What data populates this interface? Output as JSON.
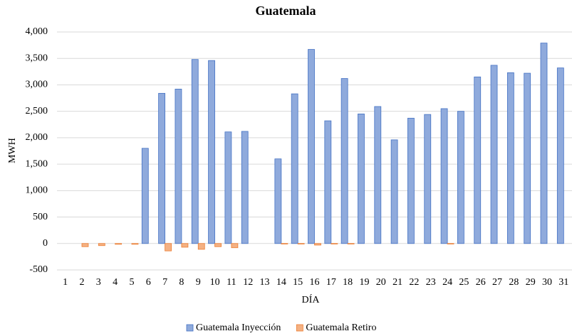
{
  "chart_data": {
    "type": "bar",
    "title": "Guatemala",
    "x_label": "DÍA",
    "y_label": "MWH",
    "categories": [
      "1",
      "2",
      "3",
      "4",
      "5",
      "6",
      "7",
      "8",
      "9",
      "10",
      "11",
      "12",
      "13",
      "14",
      "15",
      "16",
      "17",
      "18",
      "19",
      "20",
      "21",
      "22",
      "23",
      "24",
      "25",
      "26",
      "27",
      "28",
      "29",
      "30",
      "31"
    ],
    "series": [
      {
        "name": "Guatemala Inyección",
        "color": "#8faadc",
        "values": [
          0,
          0,
          0,
          0,
          0,
          1800,
          2840,
          2920,
          3480,
          3460,
          2110,
          2120,
          0,
          1600,
          2830,
          3670,
          2320,
          3120,
          2450,
          2590,
          1960,
          2370,
          2440,
          2550,
          2500,
          3150,
          3370,
          3230,
          3220,
          3790,
          3320
        ]
      },
      {
        "name": "Guatemala Retiro",
        "color": "#f4b183",
        "values": [
          0,
          -60,
          -40,
          -15,
          -15,
          0,
          -140,
          -70,
          -110,
          -60,
          -80,
          0,
          0,
          -10,
          -10,
          -30,
          -10,
          -10,
          0,
          0,
          0,
          0,
          0,
          -10,
          0,
          0,
          0,
          0,
          0,
          0,
          0
        ]
      }
    ],
    "ylim": [
      -500,
      4000
    ],
    "yticks": [
      -500,
      0,
      500,
      {
        "value": 1000,
        "label": "1,000"
      },
      {
        "value": 1500,
        "label": "1,500"
      },
      {
        "value": 2000,
        "label": "2,000"
      },
      {
        "value": 2500,
        "label": "2,500"
      },
      {
        "value": 3000,
        "label": "3,000"
      },
      {
        "value": 3500,
        "label": "3,500"
      },
      {
        "value": 4000,
        "label": "4,000"
      }
    ],
    "grid": true,
    "legend": "bottom"
  }
}
